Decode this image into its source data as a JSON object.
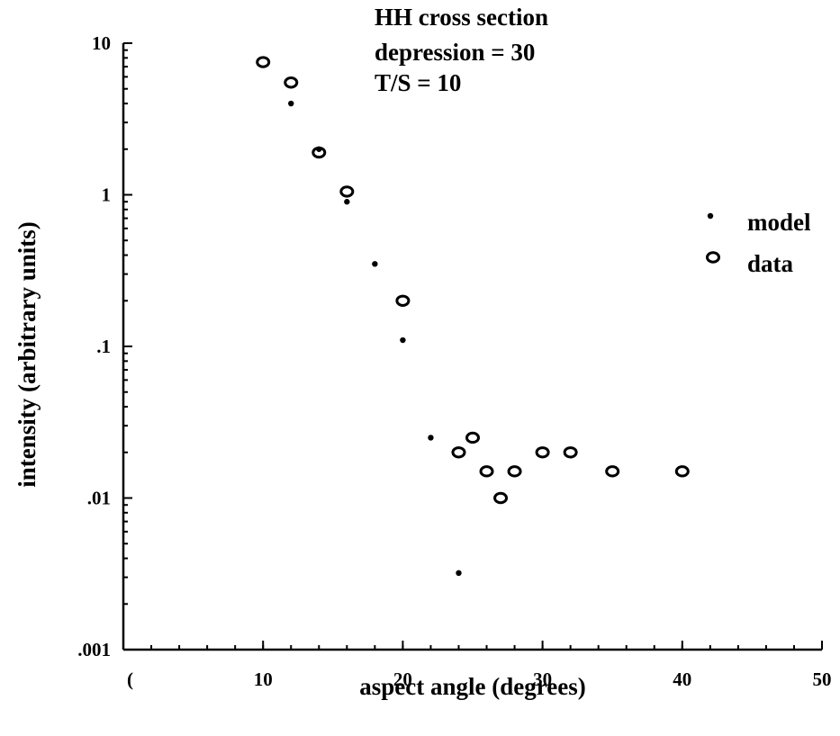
{
  "chart_data": {
    "type": "scatter",
    "title": "",
    "annotations": [
      "HH cross section",
      "depression = 30",
      "T/S = 10"
    ],
    "xlabel": "aspect angle (degrees)",
    "ylabel": "intensity (arbitrary units)",
    "xlim": [
      0,
      50
    ],
    "ylim": [
      0.001,
      10
    ],
    "yscale": "log",
    "grid": false,
    "legend_position": "right",
    "x_ticks": [
      0,
      10,
      20,
      30,
      40,
      50
    ],
    "x_tick_labels": [
      "(",
      "10",
      "20",
      "30",
      "40",
      "50"
    ],
    "y_ticks": [
      0.001,
      0.01,
      0.1,
      1,
      10
    ],
    "y_tick_labels": [
      ".001",
      ".01",
      ".1",
      "1",
      "10"
    ],
    "series": [
      {
        "name": "model",
        "marker": "dot",
        "points": [
          {
            "x": 12,
            "y": 4.0
          },
          {
            "x": 14,
            "y": 2.0
          },
          {
            "x": 16,
            "y": 0.9
          },
          {
            "x": 18,
            "y": 0.35
          },
          {
            "x": 20,
            "y": 0.11
          },
          {
            "x": 22,
            "y": 0.025
          },
          {
            "x": 24,
            "y": 0.0032
          }
        ]
      },
      {
        "name": "data",
        "marker": "circle",
        "points": [
          {
            "x": 10,
            "y": 7.5
          },
          {
            "x": 12,
            "y": 5.5
          },
          {
            "x": 14,
            "y": 1.9
          },
          {
            "x": 16,
            "y": 1.05
          },
          {
            "x": 20,
            "y": 0.2
          },
          {
            "x": 24,
            "y": 0.02
          },
          {
            "x": 25,
            "y": 0.025
          },
          {
            "x": 26,
            "y": 0.015
          },
          {
            "x": 27,
            "y": 0.01
          },
          {
            "x": 28,
            "y": 0.015
          },
          {
            "x": 30,
            "y": 0.02
          },
          {
            "x": 32,
            "y": 0.02
          },
          {
            "x": 35,
            "y": 0.015
          },
          {
            "x": 40,
            "y": 0.015
          }
        ]
      }
    ]
  }
}
